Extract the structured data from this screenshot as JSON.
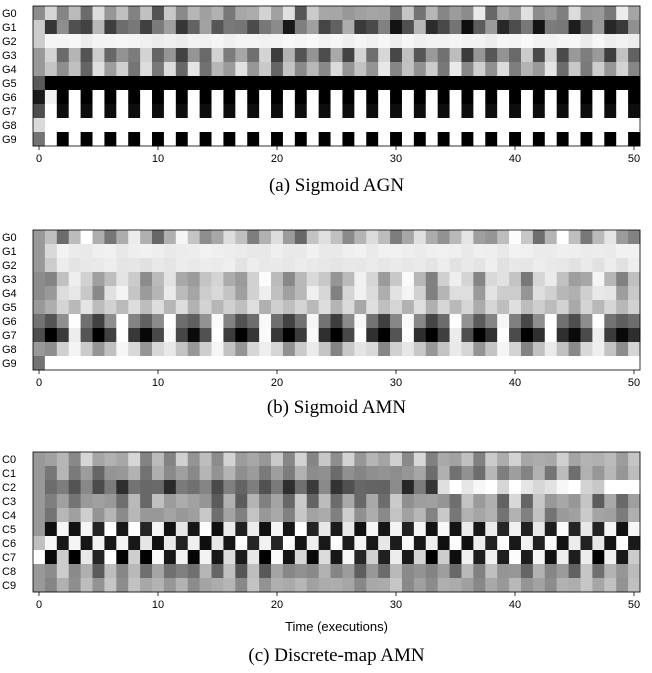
{
  "chart_data": [
    {
      "type": "heatmap",
      "title": "",
      "caption": "(a) Sigmoid AGN",
      "xlabel": "",
      "ylabel": "",
      "rows": [
        "G0",
        "G1",
        "G2",
        "G3",
        "G4",
        "G5",
        "G6",
        "G7",
        "G8",
        "G9"
      ],
      "x_ticks": [
        0,
        10,
        20,
        30,
        40,
        50
      ],
      "xlim": [
        0,
        50
      ],
      "value_range": [
        0,
        1
      ],
      "colormap": "gray (0 = black, 1 = white)",
      "patterns": [
        {
          "row": "G0",
          "initial": [
            0.55
          ],
          "cycle": [
            0.75,
            0.5
          ],
          "phase_jitter": 0.18
        },
        {
          "row": "G1",
          "initial": [
            0.8
          ],
          "cycle": [
            0.35,
            0.6,
            0.2
          ],
          "phase_jitter": 0.15
        },
        {
          "row": "G2",
          "initial": [
            0.8
          ],
          "cycle": [
            0.96,
            0.94
          ],
          "phase_jitter": 0.02
        },
        {
          "row": "G3",
          "initial": [
            0.6
          ],
          "cycle": [
            0.7,
            0.35
          ],
          "phase_jitter": 0.15
        },
        {
          "row": "G4",
          "initial": [
            0.6
          ],
          "cycle": [
            0.8,
            0.5
          ],
          "phase_jitter": 0.12
        },
        {
          "row": "G5",
          "initial": [
            0.35
          ],
          "cycle": [
            0.0
          ],
          "phase_jitter": 0.0
        },
        {
          "row": "G6",
          "initial": [
            0.1,
            0.95
          ],
          "cycle": [
            0.0,
            1.0
          ],
          "phase_jitter": 0.0
        },
        {
          "row": "G7",
          "initial": [
            0.3,
            1.0
          ],
          "cycle": [
            0.05,
            1.0
          ],
          "phase_jitter": 0.0
        },
        {
          "row": "G8",
          "initial": [
            0.85
          ],
          "cycle": [
            1.0
          ],
          "phase_jitter": 0.0
        },
        {
          "row": "G9",
          "initial": [
            0.45,
            1.0
          ],
          "cycle": [
            0.0,
            1.0
          ],
          "phase_jitter": 0.0
        }
      ]
    },
    {
      "type": "heatmap",
      "title": "",
      "caption": "(b) Sigmoid AMN",
      "xlabel": "",
      "ylabel": "",
      "rows": [
        "G0",
        "G1",
        "G2",
        "G3",
        "G4",
        "G5",
        "G6",
        "G7",
        "G8",
        "G9"
      ],
      "x_ticks": [
        0,
        10,
        20,
        30,
        40,
        50
      ],
      "xlim": [
        0,
        50
      ],
      "value_range": [
        0,
        1
      ],
      "colormap": "gray (0 = black, 1 = white)",
      "patterns": [
        {
          "row": "G0",
          "initial": [
            0.6,
            0.75
          ],
          "cycle": [
            0.5,
            0.75,
            0.95,
            0.7
          ],
          "phase_jitter": 0.1
        },
        {
          "row": "G1",
          "initial": [
            0.6,
            0.85
          ],
          "cycle": [
            0.93
          ],
          "phase_jitter": 0.02
        },
        {
          "row": "G2",
          "initial": [
            0.6,
            0.8
          ],
          "cycle": [
            0.92,
            0.9
          ],
          "phase_jitter": 0.02
        },
        {
          "row": "G3",
          "initial": [
            0.55
          ],
          "cycle": [
            0.55,
            0.75,
            0.9,
            0.75
          ],
          "phase_jitter": 0.1
        },
        {
          "row": "G4",
          "initial": [
            0.55
          ],
          "cycle": [
            0.6,
            0.8,
            0.9,
            0.8
          ],
          "phase_jitter": 0.1
        },
        {
          "row": "G5",
          "initial": [
            0.6
          ],
          "cycle": [
            0.7,
            0.85
          ],
          "phase_jitter": 0.05
        },
        {
          "row": "G6",
          "initial": [
            0.45
          ],
          "cycle": [
            0.3,
            0.5,
            1.0,
            0.5
          ],
          "phase_jitter": 0.08
        },
        {
          "row": "G7",
          "initial": [
            0.3
          ],
          "cycle": [
            0.0,
            0.25,
            1.0,
            0.25
          ],
          "phase_jitter": 0.08
        },
        {
          "row": "G8",
          "initial": [
            0.6
          ],
          "cycle": [
            0.55,
            0.8,
            0.92,
            0.8
          ],
          "phase_jitter": 0.05
        },
        {
          "row": "G9",
          "initial": [
            0.45
          ],
          "cycle": [
            1.0
          ],
          "phase_jitter": 0.0
        }
      ]
    },
    {
      "type": "heatmap",
      "title": "",
      "caption": "(c) Discrete-map AMN",
      "xlabel": "Time (executions)",
      "ylabel": "",
      "rows": [
        "C0",
        "C1",
        "C2",
        "C3",
        "C4",
        "C5",
        "C6",
        "C7",
        "C8",
        "C9"
      ],
      "x_ticks": [
        0,
        10,
        20,
        30,
        40,
        50
      ],
      "xlim": [
        0,
        50
      ],
      "value_range": [
        0,
        1
      ],
      "colormap": "gray (0 = black, 1 = white)",
      "patterns": [
        {
          "row": "C0",
          "initial": [
            0.6
          ],
          "cycle": [
            0.6,
            0.75
          ],
          "phase_jitter": 0.1
        },
        {
          "row": "C1",
          "initial": [
            0.6
          ],
          "cycle": [
            0.5,
            0.65
          ],
          "phase_jitter": 0.1
        },
        {
          "row": "C2",
          "initial": [
            0.6
          ],
          "cycle": [
            0.3,
            0.45
          ],
          "phase_jitter": 0.15,
          "late_cycle": [
            0.92,
            0.96
          ],
          "late_from": 34
        },
        {
          "row": "C3",
          "initial": [
            0.6
          ],
          "cycle": [
            0.5,
            0.7
          ],
          "phase_jitter": 0.15
        },
        {
          "row": "C4",
          "initial": [
            0.6
          ],
          "cycle": [
            0.55,
            0.7
          ],
          "phase_jitter": 0.12
        },
        {
          "row": "C5",
          "initial": [
            0.6
          ],
          "cycle": [
            0.1,
            0.95
          ],
          "phase_jitter": 0.05
        },
        {
          "row": "C6",
          "initial": [
            0.75
          ],
          "cycle": [
            0.95,
            0.1
          ],
          "phase_jitter": 0.05
        },
        {
          "row": "C7",
          "initial": [
            1.0
          ],
          "cycle": [
            0.05,
            0.9
          ],
          "phase_jitter": 0.1
        },
        {
          "row": "C8",
          "initial": [
            0.6
          ],
          "cycle": [
            0.45,
            0.65
          ],
          "phase_jitter": 0.15
        },
        {
          "row": "C9",
          "initial": [
            0.6
          ],
          "cycle": [
            0.6,
            0.7
          ],
          "phase_jitter": 0.08
        }
      ]
    }
  ]
}
